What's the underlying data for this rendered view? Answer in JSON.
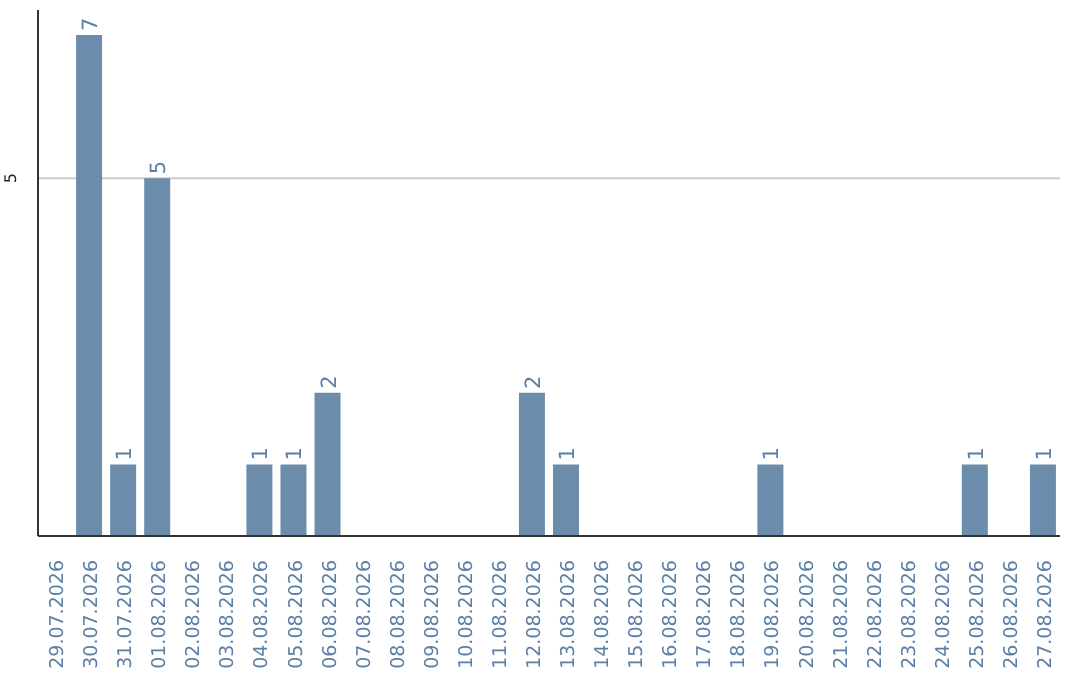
{
  "chart_data": {
    "type": "bar",
    "categories": [
      "29.07.2026",
      "30.07.2026",
      "31.07.2026",
      "01.08.2026",
      "02.08.2026",
      "03.08.2026",
      "04.08.2026",
      "05.08.2026",
      "06.08.2026",
      "07.08.2026",
      "08.08.2026",
      "09.08.2026",
      "10.08.2026",
      "11.08.2026",
      "12.08.2026",
      "13.08.2026",
      "14.08.2026",
      "15.08.2026",
      "16.08.2026",
      "17.08.2026",
      "18.08.2026",
      "19.08.2026",
      "20.08.2026",
      "21.08.2026",
      "22.08.2026",
      "23.08.2026",
      "24.08.2026",
      "25.08.2026",
      "26.08.2026",
      "27.08.2026"
    ],
    "values": [
      0,
      7,
      1,
      5,
      0,
      0,
      1,
      1,
      2,
      0,
      0,
      0,
      0,
      0,
      2,
      1,
      0,
      0,
      0,
      0,
      0,
      1,
      0,
      0,
      0,
      0,
      0,
      1,
      0,
      1
    ],
    "value_labels": [
      null,
      "7",
      "1",
      "5",
      null,
      null,
      "1",
      "1",
      "2",
      null,
      null,
      null,
      null,
      null,
      "2",
      "1",
      null,
      null,
      null,
      null,
      null,
      "1",
      null,
      null,
      null,
      null,
      null,
      "1",
      null,
      "1"
    ],
    "color": "#6c8cac",
    "ylim": [
      0,
      7.35
    ],
    "yticks": [
      5
    ],
    "grid": "y"
  }
}
